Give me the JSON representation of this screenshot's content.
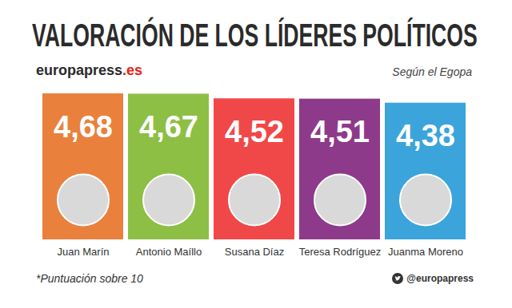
{
  "chart_data": {
    "type": "bar",
    "title": "VALORACIÓN DE LOS LÍDERES POLÍTICOS",
    "source": "europapress.es",
    "subtitle": "Según el Egopa",
    "note": "*Puntuación sobre 10",
    "handle": "@europapress",
    "categories": [
      "Juan Marín",
      "Antonio Maíllo",
      "Susana Díaz",
      "Teresa Rodríguez",
      "Juanma Moreno"
    ],
    "values": [
      4.68,
      4.67,
      4.52,
      4.51,
      4.38
    ],
    "value_labels": [
      "4,68",
      "4,67",
      "4,52",
      "4,51",
      "4,38"
    ],
    "colors": [
      "#e9813c",
      "#8dbf45",
      "#f04848",
      "#8e3a8a",
      "#3ba4db"
    ],
    "ylim": [
      0,
      4.68
    ],
    "data_labels": true,
    "tick_labels": "x"
  }
}
